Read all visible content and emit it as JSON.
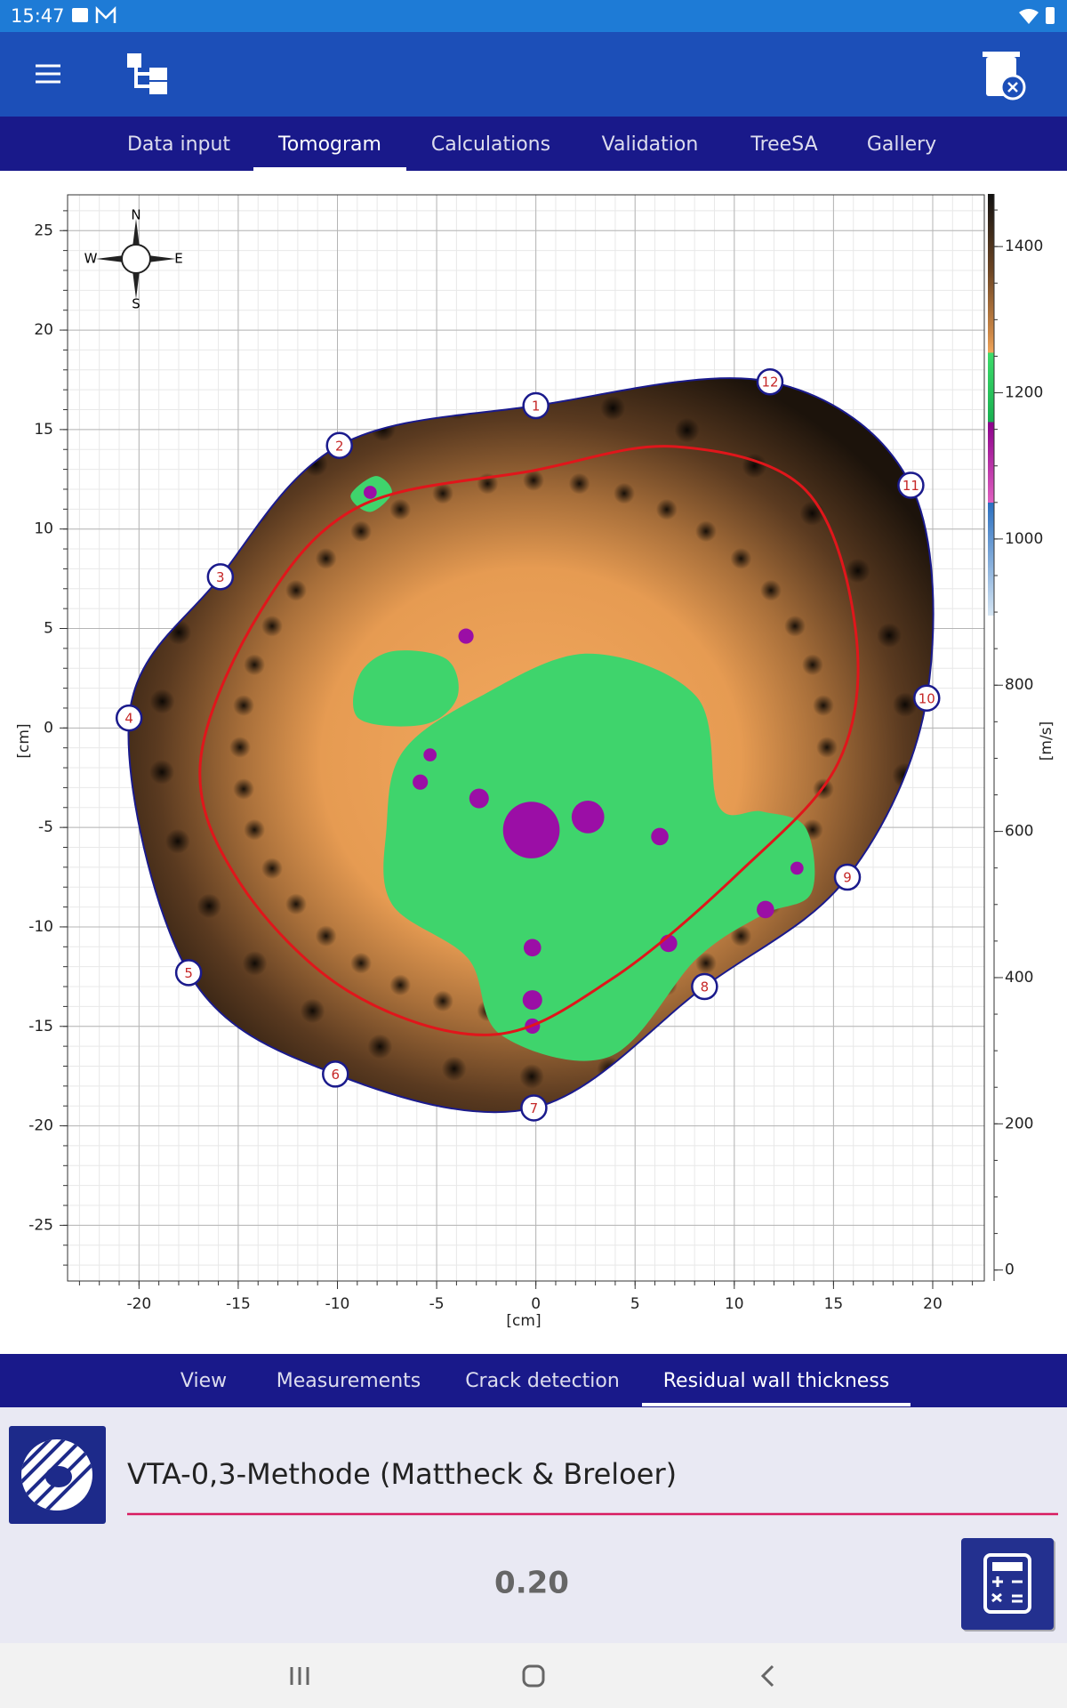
{
  "status_bar": {
    "time": "15:47"
  },
  "tabs": {
    "items": [
      "Data input",
      "Tomogram",
      "Calculations",
      "Validation",
      "TreeSA",
      "Gallery"
    ],
    "selected": 1
  },
  "chart_data": {
    "type": "tomogram",
    "x_label": "[cm]",
    "y_label": "[cm]",
    "xlim": [
      -23.6,
      22.6
    ],
    "ylim": [
      -27.8,
      26.8
    ],
    "xticks": [
      -20,
      -15,
      -10,
      -5,
      0,
      5,
      10,
      15,
      20
    ],
    "yticks": [
      -25,
      -20,
      -15,
      -10,
      -5,
      0,
      5,
      10,
      15,
      20,
      25
    ],
    "grid": true,
    "compass": {
      "north": "N",
      "south": "S",
      "west": "W",
      "east": "E"
    },
    "colorbar": {
      "label": "[m/s]",
      "lim": [
        -15,
        1472
      ],
      "ticks": [
        0,
        200,
        400,
        600,
        800,
        1000,
        1200,
        1400
      ]
    },
    "outline_color": "#1a1a8c",
    "sensor_label_color": "#c62828",
    "sensors": [
      {
        "label": 1,
        "x": 0.0,
        "y": 16.2
      },
      {
        "label": 2,
        "x": -9.9,
        "y": 14.2
      },
      {
        "label": 3,
        "x": -15.9,
        "y": 7.6
      },
      {
        "label": 4,
        "x": -20.5,
        "y": 0.5
      },
      {
        "label": 5,
        "x": -17.5,
        "y": -12.3
      },
      {
        "label": 6,
        "x": -10.1,
        "y": -17.4
      },
      {
        "label": 7,
        "x": -0.1,
        "y": -19.1
      },
      {
        "label": 8,
        "x": 8.5,
        "y": -13.0
      },
      {
        "label": 9,
        "x": 15.7,
        "y": -7.5
      },
      {
        "label": 10,
        "x": 19.7,
        "y": 1.5
      },
      {
        "label": 11,
        "x": 18.9,
        "y": 12.2
      },
      {
        "label": 12,
        "x": 11.8,
        "y": 17.4
      }
    ]
  },
  "bottom_tabs": {
    "items": [
      "View",
      "Measurements",
      "Crack detection",
      "Residual wall thickness"
    ],
    "selected": 3
  },
  "method": "VTA-0,3-Methode (Mattheck & Breloer)",
  "value": "0.20"
}
